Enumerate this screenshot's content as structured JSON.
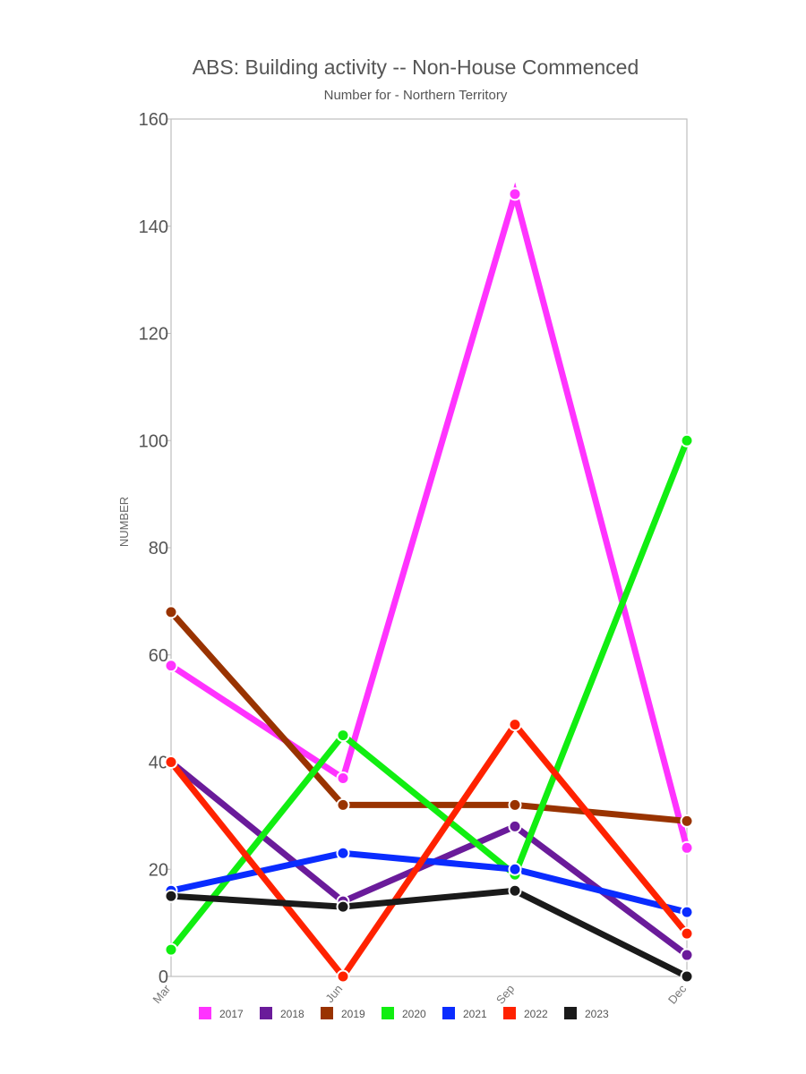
{
  "chart_data": {
    "type": "line",
    "title": "ABS: Building activity -- Non-House Commenced",
    "subtitle": "Number for - Northern Territory",
    "xlabel": "",
    "ylabel": "NUMBER",
    "categories": [
      "Mar",
      "Jun",
      "Sep",
      "Dec"
    ],
    "ylim": [
      0,
      160
    ],
    "yticks": [
      0,
      20,
      40,
      60,
      80,
      100,
      120,
      140,
      160
    ],
    "grid": false,
    "legend_position": "bottom",
    "series": [
      {
        "name": "2017",
        "color": "#ff33ff",
        "values": [
          58,
          37,
          146,
          24
        ]
      },
      {
        "name": "2018",
        "color": "#6a1b9a",
        "values": [
          40,
          14,
          28,
          4
        ]
      },
      {
        "name": "2019",
        "color": "#993300",
        "values": [
          68,
          32,
          32,
          29
        ]
      },
      {
        "name": "2020",
        "color": "#11ee11",
        "values": [
          5,
          45,
          19,
          100
        ]
      },
      {
        "name": "2021",
        "color": "#0a2cff",
        "values": [
          16,
          23,
          20,
          12
        ]
      },
      {
        "name": "2022",
        "color": "#ff2200",
        "values": [
          40,
          0,
          47,
          8
        ]
      },
      {
        "name": "2023",
        "color": "#1a1a1a",
        "values": [
          15,
          13,
          16,
          0
        ]
      }
    ]
  }
}
